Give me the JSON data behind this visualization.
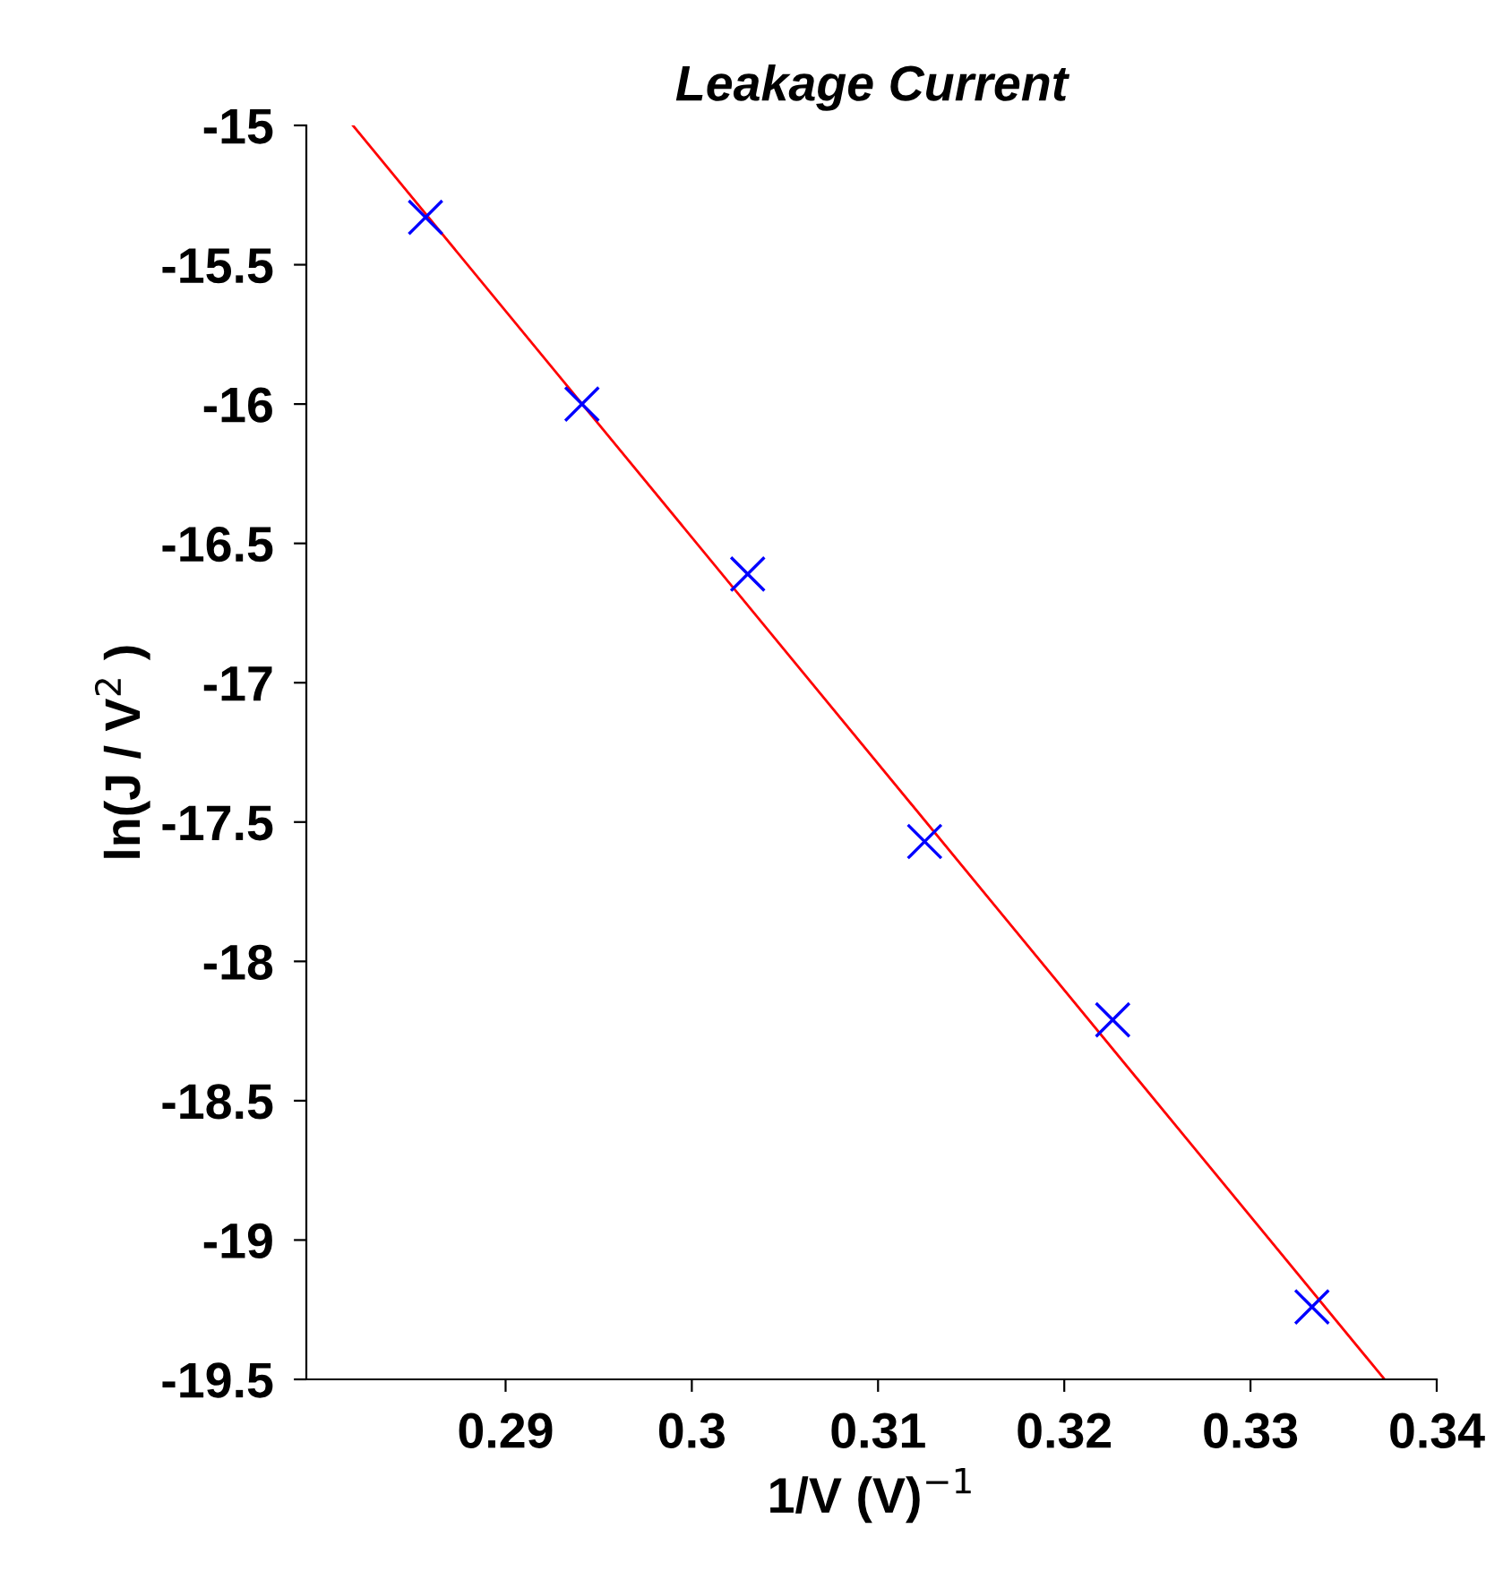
{
  "chart_data": {
    "type": "scatter",
    "title": "Leakage Current",
    "xlabel": "1/V (V)$^{−1}$",
    "ylabel": "ln(J / V$^{2}$ )",
    "xlim": [
      0.2793,
      0.34
    ],
    "xticks": [
      0.29,
      0.3,
      0.31,
      0.32,
      0.33,
      0.34
    ],
    "ylim": [
      -19.5,
      -15
    ],
    "yticks": [
      -19.5,
      -19,
      -18.5,
      -18,
      -17.5,
      -17,
      -16.5,
      -16,
      -15.5,
      -15
    ],
    "grid": false,
    "legend": false,
    "series": [
      {
        "color": "#0000ff",
        "marker": "cross",
        "x": [
          0.2857,
          0.2941,
          0.303,
          0.3125,
          0.3226,
          0.3333
        ],
        "values": [
          -15.33,
          -16.0,
          -16.61,
          -17.57,
          -18.21,
          -19.24
        ]
      },
      {
        "type": "line",
        "color": "#ff0000",
        "marker": "none",
        "line_style": "solid",
        "x": [
          0.2818,
          0.3372
        ],
        "values": [
          -15.0,
          -19.5
        ]
      }
    ]
  }
}
